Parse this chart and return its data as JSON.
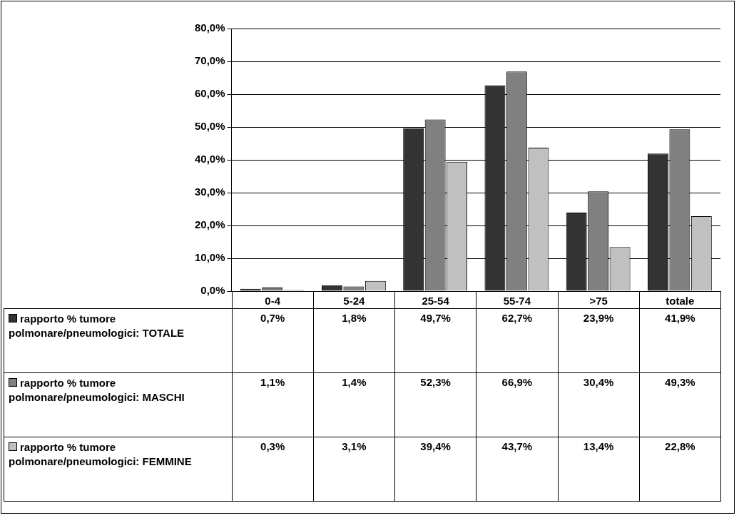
{
  "chart_data": {
    "type": "bar",
    "categories": [
      "0-4",
      "5-24",
      "25-54",
      "55-74",
      ">75",
      "totale"
    ],
    "series": [
      {
        "name": "rapporto % tumore polmonare/pneumologici: TOTALE",
        "color": "#333333",
        "values": [
          0.7,
          1.8,
          49.7,
          62.7,
          23.9,
          41.9
        ],
        "value_labels": [
          "0,7%",
          "1,8%",
          "49,7%",
          "62,7%",
          "23,9%",
          "41,9%"
        ]
      },
      {
        "name": "rapporto % tumore polmonare/pneumologici: MASCHI",
        "color": "#808080",
        "values": [
          1.1,
          1.4,
          52.3,
          66.9,
          30.4,
          49.3
        ],
        "value_labels": [
          "1,1%",
          "1,4%",
          "52,3%",
          "66,9%",
          "30,4%",
          "49,3%"
        ]
      },
      {
        "name": "rapporto % tumore polmonare/pneumologici: FEMMINE",
        "color": "#c0c0c0",
        "values": [
          0.3,
          3.1,
          39.4,
          43.7,
          13.4,
          22.8
        ],
        "value_labels": [
          "0,3%",
          "3,1%",
          "39,4%",
          "43,7%",
          "13,4%",
          "22,8%"
        ]
      }
    ],
    "ylim": [
      0,
      80
    ],
    "yticks": [
      {
        "value": 0,
        "label": "0,0%"
      },
      {
        "value": 10,
        "label": "10,0%"
      },
      {
        "value": 20,
        "label": "20,0%"
      },
      {
        "value": 30,
        "label": "30,0%"
      },
      {
        "value": 40,
        "label": "40,0%"
      },
      {
        "value": 50,
        "label": "50,0%"
      },
      {
        "value": 60,
        "label": "60,0%"
      },
      {
        "value": 70,
        "label": "70,0%"
      },
      {
        "value": 80,
        "label": "80,0%"
      }
    ],
    "grid": "y",
    "legend": "bottom left"
  }
}
